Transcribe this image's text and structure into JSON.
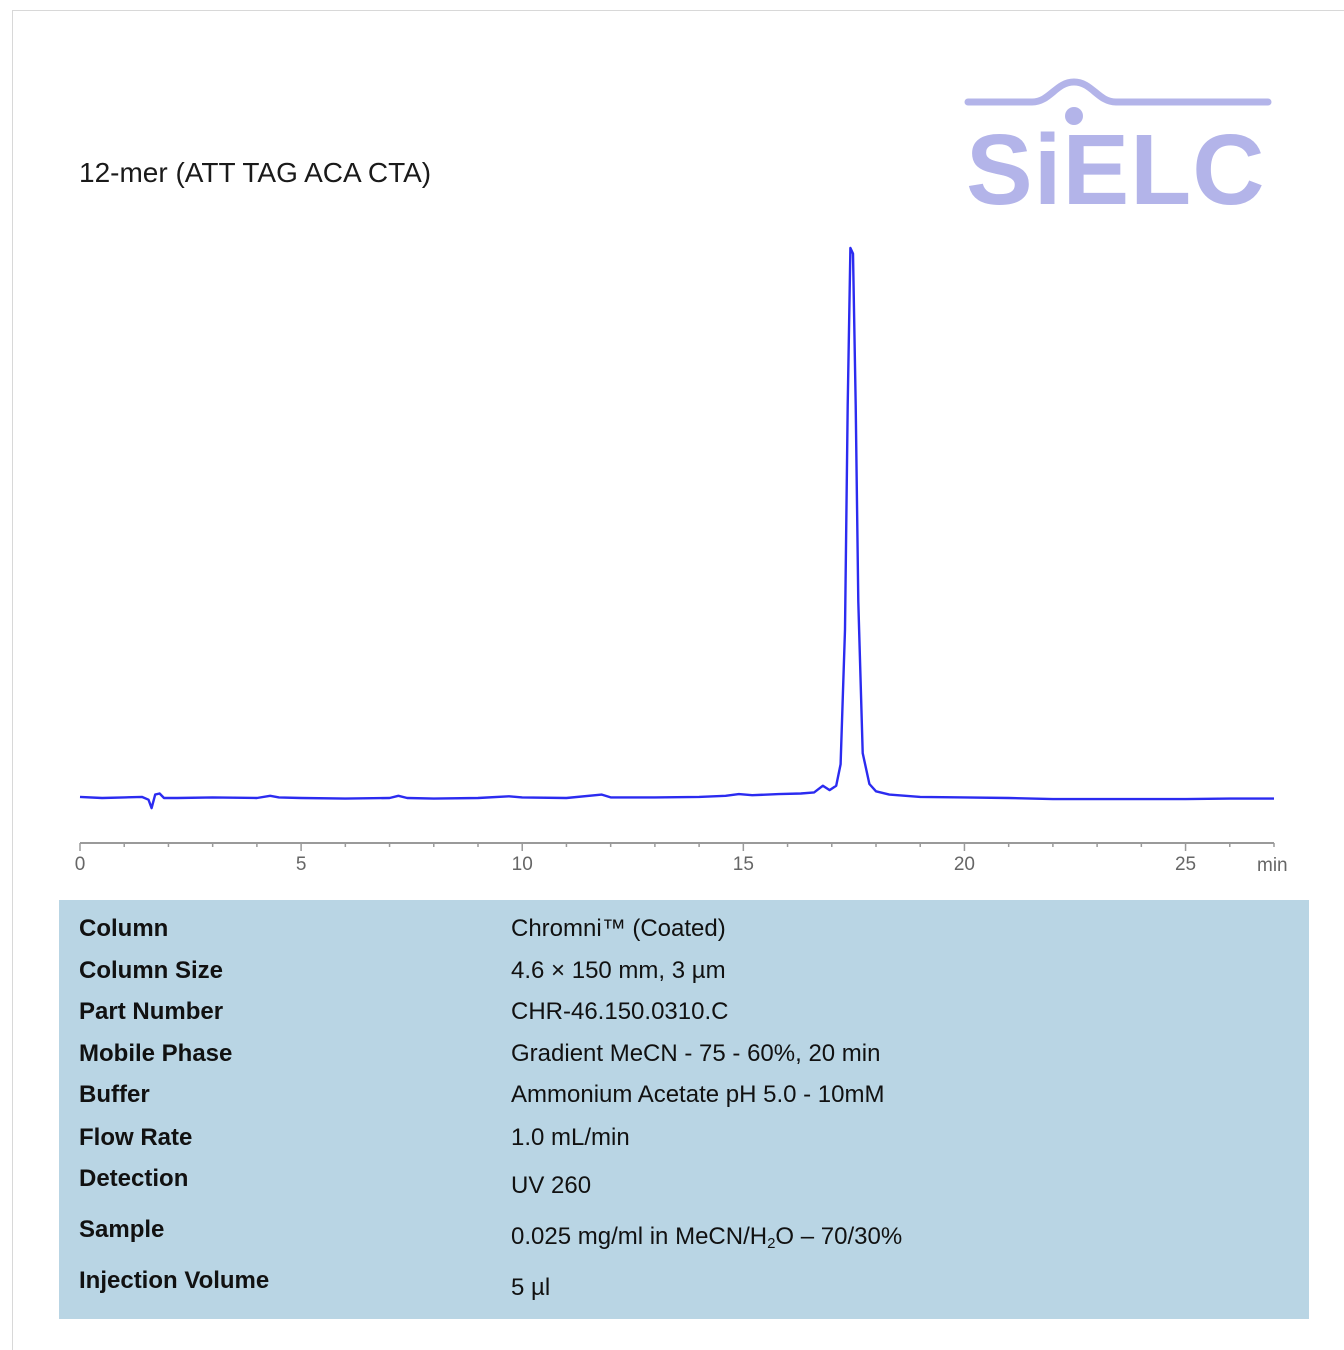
{
  "chart_data": {
    "type": "line",
    "title": "12-mer (ATT TAG ACA CTA)",
    "xlabel": "min",
    "ylabel": "",
    "xlim": [
      0,
      27
    ],
    "ylim": [
      -0.02,
      1.0
    ],
    "xticks": [
      0,
      5,
      10,
      15,
      20,
      25
    ],
    "tick_labels": [
      "0",
      "5",
      "10",
      "15",
      "20",
      "25"
    ],
    "grid": false,
    "legend": "none",
    "series": [
      {
        "color": "#2b2bf0",
        "x": [
          0.0,
          0.5,
          1.0,
          1.4,
          1.55,
          1.62,
          1.7,
          1.8,
          1.9,
          2.2,
          3.0,
          4.0,
          4.3,
          4.5,
          5.0,
          6.0,
          7.0,
          7.2,
          7.4,
          8.0,
          9.0,
          9.7,
          10.0,
          11.0,
          11.8,
          12.0,
          13.0,
          14.0,
          14.6,
          14.9,
          15.2,
          15.8,
          16.3,
          16.6,
          16.8,
          16.95,
          17.1,
          17.2,
          17.3,
          17.36,
          17.42,
          17.48,
          17.54,
          17.6,
          17.7,
          17.85,
          18.0,
          18.3,
          19.0,
          20.0,
          21.0,
          22.0,
          23.0,
          24.0,
          25.0,
          26.0,
          27.0
        ],
        "y": [
          0.002,
          0.0,
          0.001,
          0.002,
          -0.003,
          -0.018,
          0.006,
          0.008,
          0.0,
          0.0,
          0.001,
          0.0,
          0.004,
          0.001,
          0.0,
          -0.001,
          0.0,
          0.004,
          0.0,
          -0.001,
          0.0,
          0.003,
          0.001,
          0.0,
          0.006,
          0.001,
          0.001,
          0.002,
          0.004,
          0.007,
          0.005,
          0.007,
          0.008,
          0.01,
          0.022,
          0.014,
          0.022,
          0.06,
          0.3,
          0.7,
          0.98,
          0.97,
          0.7,
          0.35,
          0.08,
          0.025,
          0.012,
          0.006,
          0.002,
          0.001,
          0.0,
          -0.002,
          -0.002,
          -0.002,
          -0.002,
          -0.001,
          -0.001
        ]
      }
    ]
  },
  "logo": {
    "text": "SiELC",
    "color": "#b3b4e9"
  },
  "params": [
    {
      "label": "Column",
      "value": "Chromni™ (Coated)"
    },
    {
      "label": "Column Size",
      "value": "4.6 × 150 mm, 3 µm"
    },
    {
      "label": "Part Number",
      "value": "CHR-46.150.0310.C"
    },
    {
      "label": "Mobile Phase",
      "value": "Gradient MeCN - 75 - 60%, 20 min"
    },
    {
      "label": "Buffer",
      "value": "Ammonium Acetate pH 5.0  - 10mM"
    },
    {
      "label": "Flow Rate",
      "value": "1.0 mL/min"
    },
    {
      "label": "Detection",
      "value": "UV 260"
    },
    {
      "label": "Sample",
      "value_pre": "0.025 mg/ml in MeCN/H",
      "value_sub": "2",
      "value_post": "O – 70/30%"
    },
    {
      "label": "Injection Volume",
      "value": "5 µl"
    }
  ]
}
